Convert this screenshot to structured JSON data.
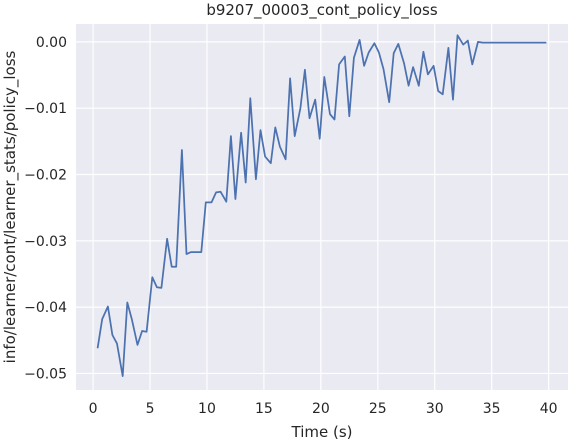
{
  "chart_data": {
    "type": "line",
    "title": "b9207_00003_cont_policy_loss",
    "xlabel": "Time (s)",
    "ylabel": "info/learner/cont/learner_stats/policy_loss",
    "xlim": [
      -1.5,
      41.7
    ],
    "ylim": [
      -0.0525,
      0.0027
    ],
    "xticks": [
      0,
      5,
      10,
      15,
      20,
      25,
      30,
      35,
      40
    ],
    "yticks": [
      -0.05,
      -0.04,
      -0.03,
      -0.02,
      -0.01,
      0.0
    ],
    "xtick_labels": [
      "0",
      "5",
      "10",
      "15",
      "20",
      "25",
      "30",
      "35",
      "40"
    ],
    "ytick_labels": [
      "−0.05",
      "−0.04",
      "−0.03",
      "−0.02",
      "−0.01",
      "0.00"
    ],
    "grid": true,
    "background": "#eaeaf2",
    "line_color": "#4c72b0",
    "series": [
      {
        "x": [
          0.4,
          0.8,
          1.3,
          1.7,
          2.1,
          2.6,
          3.0,
          3.4,
          3.9,
          4.3,
          4.7,
          5.2,
          5.6,
          6.0,
          6.5,
          6.9,
          7.3,
          7.8,
          8.2,
          8.6,
          9.1,
          9.5,
          9.9,
          10.4,
          10.8,
          11.2,
          11.7,
          12.1,
          12.5,
          13.0,
          13.4,
          13.8,
          14.3,
          14.7,
          15.1,
          15.6,
          16.0,
          16.4,
          16.9,
          17.3,
          17.7,
          18.2,
          18.6,
          19.0,
          19.5,
          19.9,
          20.3,
          20.8,
          21.2,
          21.6,
          22.1,
          22.5,
          22.9,
          23.4,
          23.8,
          24.2,
          24.7,
          25.1,
          25.5,
          26.0,
          26.4,
          26.8,
          27.3,
          27.7,
          28.1,
          28.6,
          29.0,
          29.4,
          29.9,
          30.3,
          30.7,
          31.2,
          31.6,
          32.0,
          32.5,
          32.9,
          33.3,
          33.8,
          34.2,
          34.6,
          35.1,
          35.5,
          35.9,
          36.4,
          36.8,
          37.2,
          37.7,
          38.1,
          38.5,
          39.0,
          39.4,
          39.8
        ],
        "y": [
          -0.0462,
          -0.0418,
          -0.0399,
          -0.0442,
          -0.0455,
          -0.0504,
          -0.0393,
          -0.0418,
          -0.0457,
          -0.0436,
          -0.0437,
          -0.0355,
          -0.037,
          -0.0371,
          -0.0297,
          -0.0339,
          -0.0339,
          -0.0163,
          -0.032,
          -0.0317,
          -0.0317,
          -0.0317,
          -0.0242,
          -0.0242,
          -0.0227,
          -0.0226,
          -0.0241,
          -0.0142,
          -0.0237,
          -0.0137,
          -0.0212,
          -0.0085,
          -0.0207,
          -0.0133,
          -0.0173,
          -0.0183,
          -0.0129,
          -0.0158,
          -0.0177,
          -0.0055,
          -0.0142,
          -0.01,
          -0.0042,
          -0.0115,
          -0.0087,
          -0.0146,
          -0.0053,
          -0.0109,
          -0.0117,
          -0.0034,
          -0.0022,
          -0.0112,
          -0.0024,
          0.0003,
          -0.0036,
          -0.0016,
          -0.0002,
          -0.0016,
          -0.0041,
          -0.0091,
          -0.0017,
          -0.0003,
          -0.0032,
          -0.0066,
          -0.0038,
          -0.0066,
          -0.0015,
          -0.0049,
          -0.0036,
          -0.0074,
          -0.0079,
          -0.0009,
          -0.0087,
          0.001,
          -0.0004,
          0.0002,
          -0.0034,
          0.0,
          -0.0001,
          -0.0001,
          -0.0001,
          -0.0001,
          -0.0001,
          -0.0001,
          -0.0001,
          -0.0001,
          -0.0001,
          -0.0001,
          -0.0001,
          -0.0001,
          -0.0001,
          -0.0001
        ]
      }
    ]
  }
}
